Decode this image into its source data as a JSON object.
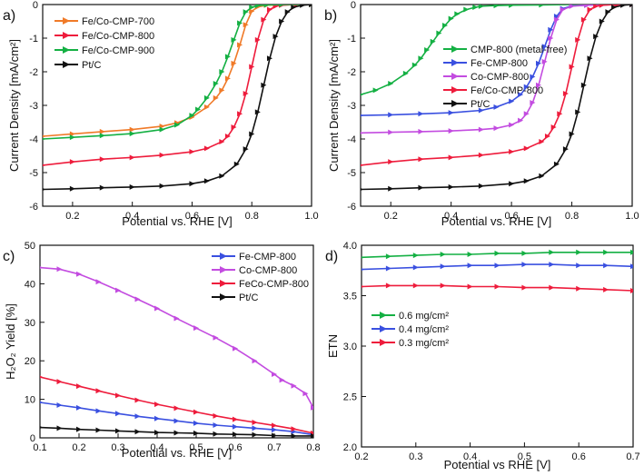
{
  "chart_data": [
    {
      "panel_label": "a)",
      "type": "line",
      "xlabel": "Potential vs. RHE [V]",
      "ylabel": "Current Density [mA/cm²]",
      "xlim": [
        0.1,
        1.0
      ],
      "ylim": [
        -6,
        0
      ],
      "xticks": [
        "0.2",
        "0.4",
        "0.6",
        "0.8",
        "1.0"
      ],
      "yticks": [
        "-6",
        "-5",
        "-4",
        "-3",
        "-2",
        "-1",
        "0"
      ],
      "legend": "top-left",
      "series": [
        {
          "name": "Fe/Co-CMP-700",
          "color": "#f07a28",
          "x": [
            0.1,
            0.2,
            0.3,
            0.4,
            0.5,
            0.55,
            0.6,
            0.65,
            0.68,
            0.7,
            0.72,
            0.74,
            0.76,
            0.78,
            0.8,
            0.82,
            0.85,
            0.9,
            0.95,
            1.0
          ],
          "y": [
            -3.92,
            -3.85,
            -3.78,
            -3.72,
            -3.62,
            -3.52,
            -3.35,
            -3.05,
            -2.78,
            -2.55,
            -2.2,
            -1.75,
            -1.2,
            -0.6,
            -0.2,
            -0.07,
            -0.02,
            -0.01,
            0.0,
            0.0
          ]
        },
        {
          "name": "Fe/Co-CMP-800",
          "color": "#ee1c3c",
          "x": [
            0.1,
            0.2,
            0.3,
            0.4,
            0.5,
            0.6,
            0.65,
            0.7,
            0.72,
            0.74,
            0.76,
            0.78,
            0.8,
            0.82,
            0.84,
            0.86,
            0.88,
            0.9,
            0.95,
            1.0
          ],
          "y": [
            -4.78,
            -4.68,
            -4.6,
            -4.55,
            -4.48,
            -4.38,
            -4.28,
            -4.08,
            -3.92,
            -3.65,
            -3.25,
            -2.65,
            -1.85,
            -1.05,
            -0.45,
            -0.15,
            -0.05,
            -0.02,
            0.0,
            0.0
          ]
        },
        {
          "name": "Fe/Co-CMP-900",
          "color": "#14b043",
          "x": [
            0.1,
            0.2,
            0.3,
            0.4,
            0.5,
            0.55,
            0.6,
            0.62,
            0.65,
            0.68,
            0.7,
            0.72,
            0.74,
            0.76,
            0.78,
            0.8,
            0.82,
            0.85,
            0.9,
            1.0
          ],
          "y": [
            -4.0,
            -3.95,
            -3.9,
            -3.84,
            -3.72,
            -3.58,
            -3.3,
            -3.12,
            -2.78,
            -2.35,
            -2.0,
            -1.55,
            -1.05,
            -0.55,
            -0.22,
            -0.08,
            -0.03,
            -0.01,
            0.0,
            0.0
          ]
        },
        {
          "name": "Pt/C",
          "color": "#111111",
          "x": [
            0.1,
            0.2,
            0.3,
            0.4,
            0.5,
            0.6,
            0.65,
            0.7,
            0.75,
            0.78,
            0.8,
            0.82,
            0.84,
            0.86,
            0.88,
            0.9,
            0.92,
            0.94,
            0.97,
            1.0
          ],
          "y": [
            -5.5,
            -5.48,
            -5.45,
            -5.43,
            -5.4,
            -5.33,
            -5.25,
            -5.1,
            -4.75,
            -4.3,
            -3.85,
            -3.2,
            -2.4,
            -1.6,
            -0.95,
            -0.5,
            -0.22,
            -0.08,
            -0.02,
            0.0
          ]
        }
      ]
    },
    {
      "panel_label": "b)",
      "type": "line",
      "xlabel": "Potential vs. RHE [V]",
      "ylabel": "Current Density [mA/cm²]",
      "xlim": [
        0.1,
        1.0
      ],
      "ylim": [
        -6,
        0
      ],
      "xticks": [
        "0.2",
        "0.4",
        "0.6",
        "0.8",
        "1.0"
      ],
      "yticks": [
        "-6",
        "-5",
        "-4",
        "-3",
        "-2",
        "-1",
        "0"
      ],
      "legend": "top-left",
      "series": [
        {
          "name": "CMP-800 (metal-free)",
          "color": "#14b043",
          "x": [
            0.1,
            0.15,
            0.2,
            0.25,
            0.28,
            0.3,
            0.32,
            0.34,
            0.36,
            0.38,
            0.4,
            0.42,
            0.45,
            0.48,
            0.5,
            0.55,
            0.6,
            0.7,
            0.8,
            1.0
          ],
          "y": [
            -2.68,
            -2.55,
            -2.35,
            -2.05,
            -1.8,
            -1.6,
            -1.35,
            -1.1,
            -0.85,
            -0.62,
            -0.42,
            -0.28,
            -0.15,
            -0.08,
            -0.05,
            -0.03,
            -0.02,
            -0.01,
            0.0,
            0.0
          ]
        },
        {
          "name": "Fe-CMP-800",
          "color": "#3a50e0",
          "x": [
            0.1,
            0.2,
            0.3,
            0.4,
            0.5,
            0.55,
            0.6,
            0.63,
            0.65,
            0.67,
            0.69,
            0.71,
            0.73,
            0.75,
            0.77,
            0.8,
            0.85,
            0.9,
            0.95,
            1.0
          ],
          "y": [
            -3.3,
            -3.28,
            -3.25,
            -3.22,
            -3.15,
            -3.05,
            -2.88,
            -2.68,
            -2.45,
            -2.15,
            -1.75,
            -1.25,
            -0.75,
            -0.35,
            -0.12,
            -0.04,
            -0.02,
            -0.01,
            0.0,
            0.0
          ]
        },
        {
          "name": "Co-CMP-800",
          "color": "#c34ce0",
          "x": [
            0.1,
            0.2,
            0.3,
            0.4,
            0.5,
            0.55,
            0.6,
            0.63,
            0.65,
            0.67,
            0.69,
            0.71,
            0.73,
            0.75,
            0.77,
            0.8,
            0.85,
            0.9,
            0.95,
            1.0
          ],
          "y": [
            -3.82,
            -3.8,
            -3.78,
            -3.76,
            -3.72,
            -3.68,
            -3.58,
            -3.45,
            -3.25,
            -2.92,
            -2.4,
            -1.7,
            -1.0,
            -0.45,
            -0.15,
            -0.05,
            -0.02,
            -0.01,
            0.0,
            0.0
          ]
        },
        {
          "name": "Fe/Co-CMP-800",
          "color": "#ee1c3c",
          "x": [
            0.1,
            0.2,
            0.3,
            0.4,
            0.5,
            0.6,
            0.65,
            0.7,
            0.72,
            0.74,
            0.76,
            0.78,
            0.8,
            0.82,
            0.84,
            0.86,
            0.88,
            0.9,
            0.95,
            1.0
          ],
          "y": [
            -4.78,
            -4.68,
            -4.6,
            -4.55,
            -4.48,
            -4.38,
            -4.28,
            -4.08,
            -3.92,
            -3.65,
            -3.25,
            -2.65,
            -1.85,
            -1.05,
            -0.45,
            -0.15,
            -0.05,
            -0.02,
            0.0,
            0.0
          ]
        },
        {
          "name": "Pt/C",
          "color": "#111111",
          "x": [
            0.1,
            0.2,
            0.3,
            0.4,
            0.5,
            0.6,
            0.65,
            0.7,
            0.75,
            0.78,
            0.8,
            0.82,
            0.84,
            0.86,
            0.88,
            0.9,
            0.92,
            0.94,
            0.97,
            1.0
          ],
          "y": [
            -5.5,
            -5.48,
            -5.45,
            -5.43,
            -5.4,
            -5.33,
            -5.25,
            -5.1,
            -4.75,
            -4.3,
            -3.85,
            -3.2,
            -2.4,
            -1.6,
            -0.95,
            -0.5,
            -0.22,
            -0.08,
            -0.02,
            0.0
          ]
        }
      ]
    },
    {
      "panel_label": "c)",
      "type": "line",
      "xlabel": "Potential vs. RHE [V]",
      "ylabel": "H₂O₂ Yield [%]",
      "xlim": [
        0.1,
        0.8
      ],
      "ylim": [
        0,
        50
      ],
      "xticks": [
        "0.1",
        "0.2",
        "0.3",
        "0.4",
        "0.5",
        "0.6",
        "0.7",
        "0.8"
      ],
      "yticks": [
        "0",
        "10",
        "20",
        "30",
        "40",
        "50"
      ],
      "legend": "top-right",
      "series": [
        {
          "name": "Fe-CMP-800",
          "color": "#3a50e0",
          "x": [
            0.1,
            0.15,
            0.2,
            0.25,
            0.3,
            0.35,
            0.4,
            0.45,
            0.5,
            0.55,
            0.6,
            0.65,
            0.7,
            0.75,
            0.8
          ],
          "y": [
            9.2,
            8.5,
            7.8,
            7.0,
            6.3,
            5.6,
            5.0,
            4.4,
            3.8,
            3.3,
            2.9,
            2.5,
            2.1,
            1.6,
            0.8
          ]
        },
        {
          "name": "Co-CMP-800",
          "color": "#c34ce0",
          "x": [
            0.1,
            0.15,
            0.2,
            0.25,
            0.3,
            0.35,
            0.4,
            0.45,
            0.5,
            0.55,
            0.6,
            0.65,
            0.7,
            0.72,
            0.75,
            0.78,
            0.8
          ],
          "y": [
            44.2,
            43.8,
            42.5,
            40.5,
            38.3,
            36.0,
            33.6,
            31.0,
            28.5,
            26.0,
            23.2,
            20.0,
            16.5,
            15.0,
            13.5,
            11.5,
            7.8
          ]
        },
        {
          "name": "FeCo-CMP-800",
          "color": "#ee1c3c",
          "x": [
            0.1,
            0.15,
            0.2,
            0.25,
            0.3,
            0.35,
            0.4,
            0.45,
            0.5,
            0.55,
            0.6,
            0.65,
            0.7,
            0.75,
            0.8
          ],
          "y": [
            15.8,
            14.6,
            13.4,
            12.2,
            11.0,
            9.8,
            8.7,
            7.7,
            6.7,
            5.7,
            4.8,
            4.0,
            3.2,
            2.3,
            1.2
          ]
        },
        {
          "name": "Pt/C",
          "color": "#111111",
          "x": [
            0.1,
            0.15,
            0.2,
            0.25,
            0.3,
            0.35,
            0.4,
            0.45,
            0.5,
            0.55,
            0.6,
            0.65,
            0.7,
            0.75,
            0.8
          ],
          "y": [
            2.7,
            2.5,
            2.2,
            2.0,
            1.8,
            1.6,
            1.4,
            1.3,
            1.2,
            1.0,
            0.9,
            0.8,
            0.6,
            0.5,
            0.5
          ]
        }
      ]
    },
    {
      "panel_label": "d)",
      "type": "line",
      "xlabel": "Potential vs RHE [V]",
      "ylabel": "ETN",
      "xlim": [
        0.2,
        0.7
      ],
      "ylim": [
        2.0,
        4.0
      ],
      "xticks": [
        "0.2",
        "0.3",
        "0.4",
        "0.5",
        "0.6",
        "0.7"
      ],
      "yticks": [
        "2.0",
        "2.5",
        "3.0",
        "3.5",
        "4.0"
      ],
      "legend": "center-left",
      "series": [
        {
          "name": "0.6 mg/cm²",
          "color": "#14b043",
          "x": [
            0.2,
            0.25,
            0.3,
            0.35,
            0.4,
            0.45,
            0.5,
            0.55,
            0.6,
            0.65,
            0.7
          ],
          "y": [
            3.88,
            3.89,
            3.9,
            3.91,
            3.91,
            3.92,
            3.92,
            3.93,
            3.93,
            3.93,
            3.93
          ]
        },
        {
          "name": "0.4 mg/cm²",
          "color": "#3a50e0",
          "x": [
            0.2,
            0.25,
            0.3,
            0.35,
            0.4,
            0.45,
            0.5,
            0.55,
            0.6,
            0.65,
            0.7
          ],
          "y": [
            3.76,
            3.77,
            3.78,
            3.79,
            3.8,
            3.8,
            3.81,
            3.81,
            3.8,
            3.8,
            3.79
          ]
        },
        {
          "name": "0.3 mg/cm²",
          "color": "#ee1c3c",
          "x": [
            0.2,
            0.25,
            0.3,
            0.35,
            0.4,
            0.45,
            0.5,
            0.55,
            0.6,
            0.65,
            0.7
          ],
          "y": [
            3.59,
            3.6,
            3.6,
            3.6,
            3.59,
            3.59,
            3.58,
            3.58,
            3.57,
            3.56,
            3.55
          ]
        }
      ]
    }
  ]
}
